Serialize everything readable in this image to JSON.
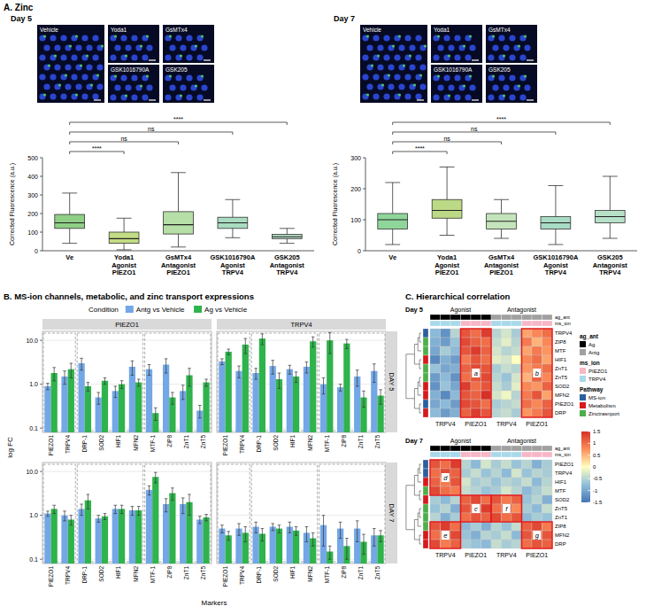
{
  "chart_data": [
    {
      "type": "box",
      "panel": "A. Zinc",
      "title": "Day 5",
      "images": [
        "Vehicle",
        "Yoda1",
        "GsMTx4",
        "GSK1016790A",
        "GSK205"
      ],
      "categories": [
        "Ve",
        "Yoda1\nAgonist\nPIEZO1",
        "GsMTx4\nAntagonist\nPIEZO1",
        "GSK1016790A\nAgonist\nTRPV4",
        "GSK205\nAntagonist\nTRPV4"
      ],
      "ylabel": "Corrected Fluorescence (a.u.)",
      "ylim": [
        0,
        500
      ],
      "yticks": [
        0,
        100,
        200,
        300,
        400,
        500
      ],
      "colors": [
        "#8fcf86",
        "#c2dc84",
        "#b5dfa6",
        "#a9dcc0",
        "#b6dec9"
      ],
      "stats": [
        {
          "min": 40,
          "q1": 120,
          "median": 150,
          "q3": 195,
          "max": 310
        },
        {
          "min": 5,
          "q1": 40,
          "median": 65,
          "q3": 100,
          "max": 175
        },
        {
          "min": 20,
          "q1": 90,
          "median": 140,
          "q3": 210,
          "max": 420
        },
        {
          "min": 70,
          "q1": 120,
          "median": 150,
          "q3": 180,
          "max": 275
        },
        {
          "min": 40,
          "q1": 65,
          "median": 75,
          "q3": 88,
          "max": 120
        }
      ],
      "comparisons": [
        {
          "from": 0,
          "to": 1,
          "label": "****"
        },
        {
          "from": 0,
          "to": 2,
          "label": "ns"
        },
        {
          "from": 0,
          "to": 3,
          "label": "ns"
        },
        {
          "from": 0,
          "to": 4,
          "label": "****"
        }
      ]
    },
    {
      "type": "box",
      "title": "Day 7",
      "images": [
        "Vehicle",
        "Yoda1",
        "GsMTx4",
        "GSK1016790A",
        "GSK205"
      ],
      "categories": [
        "Ve",
        "Yoda1\nAgonist\nPIEZO1",
        "GsMTx4\nAntagonist\nPIEZO1",
        "GSK1016790A\nAgonist\nTRPV4",
        "GSK205\nAntagonist\nTRPV4"
      ],
      "ylabel": "Corrected Fluorescence (a.u.)",
      "ylim": [
        0,
        300
      ],
      "yticks": [
        0,
        100,
        200,
        300
      ],
      "colors": [
        "#8fd69a",
        "#bcd985",
        "#c4e4bb",
        "#a8dcc4",
        "#b7e0c9"
      ],
      "stats": [
        {
          "min": 20,
          "q1": 70,
          "median": 100,
          "q3": 120,
          "max": 220
        },
        {
          "min": 50,
          "q1": 105,
          "median": 130,
          "q3": 165,
          "max": 270
        },
        {
          "min": 40,
          "q1": 70,
          "median": 95,
          "q3": 120,
          "max": 165
        },
        {
          "min": 20,
          "q1": 70,
          "median": 90,
          "q3": 110,
          "max": 210
        },
        {
          "min": 40,
          "q1": 90,
          "median": 110,
          "q3": 130,
          "max": 240
        }
      ],
      "comparisons": [
        {
          "from": 0,
          "to": 1,
          "label": "****"
        },
        {
          "from": 0,
          "to": 2,
          "label": "ns"
        },
        {
          "from": 0,
          "to": 3,
          "label": "ns"
        },
        {
          "from": 0,
          "to": 4,
          "label": "****"
        }
      ]
    },
    {
      "type": "bar",
      "panel": "B. MS-ion channels, metabolic, and zinc transport expressions",
      "log": "y",
      "legend": "top",
      "legend_title": "Condition",
      "ylabel": "log FC",
      "xlabel": "Markers",
      "categories": [
        "PIEZO1",
        "TRPV4",
        "DRP-1",
        "SOD2",
        "HIF1",
        "MFN2",
        "MTF-1",
        "ZIP8",
        "ZnT1",
        "ZnT5"
      ],
      "marker_groups": [
        [
          0,
          1
        ],
        [
          2,
          5
        ],
        [
          6,
          9
        ]
      ],
      "ylim": [
        0.08,
        16
      ],
      "yticks": [
        0.1,
        {
          "value": 1,
          "label": "1.0"
        },
        {
          "value": 10,
          "label": "10.0"
        }
      ],
      "grid": true,
      "columns": [
        "PIEZO1",
        "TRPV4"
      ],
      "rows": [
        "DAY 5",
        "DAY 7"
      ],
      "series": [
        {
          "name": "Antg vs Vehicle",
          "color": "#73a7e6"
        },
        {
          "name": "Ag vs Vehicle",
          "color": "#2fb34c"
        }
      ],
      "panels": [
        {
          "row": 0,
          "column": 0,
          "values": [
            [
              0.9,
              1.5,
              3.0,
              0.5,
              0.7,
              2.5,
              2.2,
              2.8,
              0.7,
              0.25
            ],
            [
              1.8,
              2.2,
              0.9,
              1.2,
              1.0,
              1.1,
              0.22,
              0.5,
              1.6,
              1.1
            ]
          ],
          "errors": [
            [
              0.15,
              0.5,
              0.9,
              0.15,
              0.2,
              0.9,
              0.6,
              1.0,
              0.25,
              0.08
            ],
            [
              0.6,
              0.8,
              0.2,
              0.2,
              0.2,
              0.2,
              0.07,
              0.15,
              0.7,
              0.2
            ]
          ]
        },
        {
          "row": 0,
          "column": 1,
          "values": [
            [
              3.3,
              2.0,
              1.8,
              2.6,
              2.2,
              2.5,
              1.0,
              0.85,
              1.5,
              2.0
            ],
            [
              5.5,
              8.0,
              11.0,
              1.3,
              1.5,
              9.5,
              10.0,
              8.5,
              0.5,
              0.55
            ]
          ],
          "errors": [
            [
              0.5,
              0.6,
              0.5,
              0.9,
              0.5,
              0.7,
              0.4,
              0.15,
              0.6,
              0.9
            ],
            [
              0.8,
              3.0,
              3.0,
              0.5,
              0.4,
              2.5,
              5.0,
              2.0,
              0.2,
              0.2
            ]
          ]
        },
        {
          "row": 1,
          "column": 0,
          "values": [
            [
              1.1,
              1.0,
              1.4,
              0.85,
              1.4,
              1.3,
              3.8,
              1.8,
              1.8,
              0.8
            ],
            [
              1.4,
              0.8,
              2.2,
              0.95,
              1.4,
              1.3,
              7.5,
              3.2,
              2.0,
              0.9
            ]
          ],
          "errors": [
            [
              0.15,
              0.25,
              0.4,
              0.15,
              0.3,
              0.3,
              0.9,
              0.6,
              0.7,
              0.15
            ],
            [
              0.3,
              0.2,
              0.8,
              0.15,
              0.3,
              0.3,
              2.0,
              1.0,
              1.0,
              0.15
            ]
          ]
        },
        {
          "row": 1,
          "column": 1,
          "values": [
            [
              0.5,
              0.5,
              0.55,
              0.55,
              0.55,
              0.4,
              0.6,
              0.5,
              0.5,
              0.35
            ],
            [
              0.35,
              0.4,
              0.38,
              0.5,
              0.45,
              0.3,
              0.15,
              0.2,
              0.25,
              0.35
            ]
          ],
          "errors": [
            [
              0.1,
              0.15,
              0.15,
              0.1,
              0.15,
              0.15,
              0.4,
              0.2,
              0.25,
              0.15
            ],
            [
              0.08,
              0.15,
              0.12,
              0.1,
              0.1,
              0.1,
              0.05,
              0.1,
              0.12,
              0.1
            ]
          ]
        }
      ]
    },
    {
      "type": "heatmap",
      "panel": "C. Hierarchical correlation",
      "title": "Day 5",
      "column_headers": [
        "Agonist",
        "Antagonist"
      ],
      "column_labels": [
        "TRPV4",
        "PIEZO1",
        "TRPV4",
        "PIEZO1"
      ],
      "annotation_rows": [
        "ag_ant",
        "ms_ion"
      ],
      "column_annotations": [
        [
          "Ag",
          "Ag",
          "Ag",
          "Ag",
          "Ag",
          "Ag",
          "Antg",
          "Antg",
          "Antg",
          "Antg",
          "Antg",
          "Antg"
        ],
        [
          "TRPV4",
          "TRPV4",
          "TRPV4",
          "PIEZO1",
          "PIEZO1",
          "PIEZO1",
          "TRPV4",
          "TRPV4",
          "TRPV4",
          "PIEZO1",
          "PIEZO1",
          "PIEZO1"
        ]
      ],
      "rows": [
        "TRPV4",
        "ZIP8",
        "MTF",
        "HIF1",
        "ZnT1",
        "ZnT5",
        "SOD2",
        "MFN2",
        "PIEZO1",
        "DRP"
      ],
      "row_pathway": [
        "MS-ion",
        "Zinctrasnport",
        "Zinctrasnport",
        "Metabolism",
        "Zinctrasnport",
        "Zinctrasnport",
        "Metabolism",
        "Metabolism",
        "MS-ion",
        "Metabolism"
      ],
      "cells": [
        [
          -0.8,
          -1.2,
          -0.5,
          1.2,
          1.0,
          1.4,
          -0.5,
          -0.3,
          -0.6,
          0.6,
          0.8,
          1.0
        ],
        [
          -0.9,
          -1.1,
          -0.7,
          1.3,
          1.1,
          1.0,
          -0.4,
          -0.2,
          -0.5,
          0.9,
          0.5,
          0.8
        ],
        [
          -1.0,
          -0.6,
          -0.8,
          1.2,
          1.4,
          1.1,
          -0.3,
          -0.5,
          -0.4,
          0.6,
          0.9,
          0.7
        ],
        [
          -1.3,
          -0.9,
          -1.1,
          0.9,
          1.2,
          1.0,
          -0.2,
          -0.3,
          0.0,
          0.8,
          1.0,
          0.6
        ],
        [
          -0.7,
          -1.0,
          -0.9,
          1.1,
          1.3,
          1.2,
          -0.6,
          -0.4,
          -0.5,
          0.7,
          0.9,
          1.0
        ],
        [
          -1.1,
          -0.8,
          -1.2,
          1.0,
          1.2,
          1.3,
          -0.5,
          -0.7,
          -0.3,
          0.5,
          1.1,
          0.8
        ],
        [
          -1.2,
          -0.7,
          -1.0,
          1.4,
          1.0,
          1.2,
          -0.4,
          -0.6,
          -0.2,
          0.8,
          0.7,
          1.1
        ],
        [
          -0.9,
          -1.3,
          -0.8,
          1.2,
          1.1,
          1.5,
          -0.3,
          -0.1,
          -0.5,
          0.9,
          1.2,
          0.6
        ],
        [
          -1.0,
          -0.8,
          -1.1,
          1.3,
          1.2,
          1.0,
          -0.6,
          -0.5,
          -0.4,
          1.0,
          0.8,
          1.1
        ],
        [
          -0.8,
          -1.1,
          -0.9,
          1.1,
          1.4,
          1.2,
          -0.5,
          -0.4,
          -0.6,
          0.7,
          0.9,
          1.2
        ]
      ],
      "annotations": [
        {
          "label": "a",
          "rows": [
            0,
            9
          ],
          "columns": [
            3,
            5
          ]
        },
        {
          "label": "b",
          "rows": [
            0,
            9
          ],
          "columns": [
            9,
            11
          ]
        }
      ],
      "legends": [
        {
          "title": "ag_ant",
          "items": [
            {
              "name": "Ag",
              "color": "#000000"
            },
            {
              "name": "Antg",
              "color": "#a0a0a0"
            }
          ]
        },
        {
          "title": "ms_ion",
          "items": [
            {
              "name": "PIEZO1",
              "color": "#f6b7c6"
            },
            {
              "name": "TRPV4",
              "color": "#a8d9ea"
            }
          ]
        },
        {
          "title": "Pathway",
          "items": [
            {
              "name": "MS-ion",
              "color": "#2c5f9e"
            },
            {
              "name": "Metabolism",
              "color": "#d7191c"
            },
            {
              "name": "Zinctrasnport",
              "color": "#4daf4a"
            }
          ]
        }
      ],
      "colorbar": {
        "range": [
          -1.5,
          1.5
        ],
        "ticks": [
          -1.5,
          -1,
          -0.5,
          0,
          0.5,
          1,
          1.5
        ],
        "colors": [
          "#4575b4",
          "#91bfdb",
          "#ffffbf",
          "#fc8d59",
          "#d73027"
        ]
      }
    },
    {
      "type": "heatmap",
      "title": "Day 7",
      "column_headers": [
        "Agonist",
        "Antagonist"
      ],
      "column_labels": [
        "TRPV4",
        "PIEZO1",
        "TRPV4",
        "PIEZO1"
      ],
      "annotation_rows": [
        "ag_ant",
        "ms_ion"
      ],
      "column_annotations": [
        [
          "Ag",
          "Ag",
          "Ag",
          "Ag",
          "Ag",
          "Ag",
          "Antg",
          "Antg",
          "Antg",
          "Antg",
          "Antg",
          "Antg"
        ],
        [
          "TRPV4",
          "TRPV4",
          "TRPV4",
          "PIEZO1",
          "PIEZO1",
          "PIEZO1",
          "TRPV4",
          "TRPV4",
          "TRPV4",
          "PIEZO1",
          "PIEZO1",
          "PIEZO1"
        ]
      ],
      "rows": [
        "PIEZO1",
        "TRPV4",
        "HIF1",
        "MTF",
        "SOD2",
        "ZnT5",
        "ZnT1",
        "ZIP8",
        "MFN2",
        "DRP"
      ],
      "row_pathway": [
        "MS-ion",
        "MS-ion",
        "Metabolism",
        "Zinctrasnport",
        "Metabolism",
        "Zinctrasnport",
        "Zinctrasnport",
        "Zinctrasnport",
        "Metabolism",
        "Metabolism"
      ],
      "cells": [
        [
          1.2,
          1.0,
          1.4,
          -0.5,
          -0.8,
          -0.3,
          -0.6,
          -0.4,
          -0.7,
          -0.5,
          -0.9,
          -0.6
        ],
        [
          1.0,
          1.3,
          1.1,
          -0.6,
          -0.4,
          -0.7,
          -0.5,
          -0.8,
          -0.3,
          -0.7,
          -0.5,
          -0.6
        ],
        [
          1.1,
          0.9,
          1.2,
          -0.3,
          -0.6,
          -0.5,
          -0.7,
          -0.5,
          -0.6,
          -0.4,
          -0.8,
          -0.5
        ],
        [
          1.3,
          1.0,
          0.9,
          -0.4,
          -0.5,
          -0.7,
          -0.6,
          -0.3,
          -0.5,
          -0.8,
          -0.6,
          -0.4
        ],
        [
          -0.6,
          -0.8,
          -0.5,
          1.1,
          1.3,
          1.0,
          1.2,
          0.9,
          1.1,
          -0.7,
          -0.5,
          -0.9
        ],
        [
          -0.7,
          -0.5,
          -0.9,
          1.2,
          1.0,
          1.4,
          1.0,
          1.3,
          0.8,
          -0.6,
          -0.8,
          -0.4
        ],
        [
          -0.5,
          -0.9,
          -0.6,
          1.0,
          1.2,
          1.1,
          1.3,
          1.0,
          1.2,
          -0.8,
          -0.6,
          -0.7
        ],
        [
          1.2,
          1.4,
          1.0,
          -0.8,
          -0.6,
          -0.9,
          -0.5,
          -0.7,
          -0.4,
          1.1,
          1.3,
          0.9
        ],
        [
          1.0,
          1.1,
          1.3,
          -0.7,
          -0.9,
          -0.5,
          -0.6,
          -0.4,
          -0.8,
          1.2,
          1.0,
          1.2
        ],
        [
          1.3,
          0.9,
          1.1,
          -0.6,
          -0.7,
          -0.8,
          -0.4,
          -0.6,
          -0.5,
          1.0,
          1.2,
          1.1
        ]
      ],
      "annotations": [
        {
          "label": "d",
          "rows": [
            0,
            3
          ],
          "columns": [
            0,
            2
          ]
        },
        {
          "label": "c",
          "rows": [
            4,
            6
          ],
          "columns": [
            3,
            5
          ]
        },
        {
          "label": "f",
          "rows": [
            4,
            6
          ],
          "columns": [
            6,
            8
          ]
        },
        {
          "label": "e",
          "rows": [
            7,
            9
          ],
          "columns": [
            0,
            2
          ]
        },
        {
          "label": "g",
          "rows": [
            7,
            9
          ],
          "columns": [
            9,
            11
          ]
        }
      ]
    }
  ]
}
